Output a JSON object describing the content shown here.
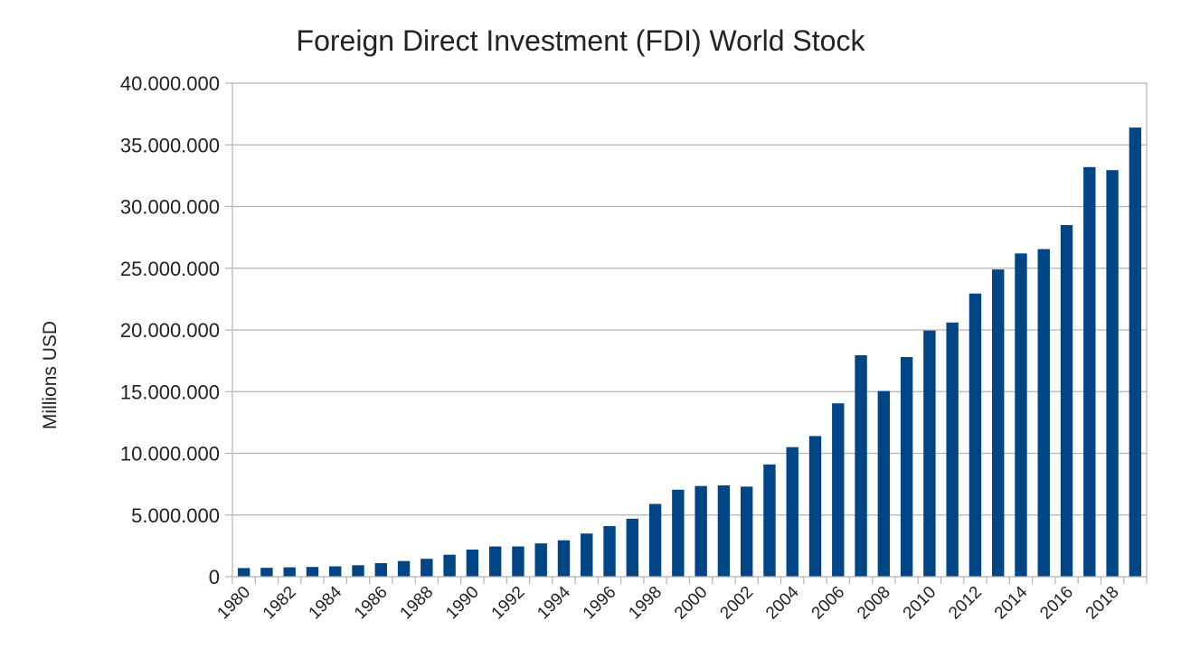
{
  "chart_data": {
    "type": "bar",
    "title": "Foreign Direct Investment (FDI) World Stock",
    "xlabel": "",
    "ylabel": "Millions USD",
    "ylim": [
      0,
      40000000
    ],
    "yticks": [
      0,
      5000000,
      10000000,
      15000000,
      20000000,
      25000000,
      30000000,
      35000000,
      40000000
    ],
    "ytick_labels": [
      "0",
      "5.000.000",
      "10.000.000",
      "15.000.000",
      "20.000.000",
      "25.000.000",
      "30.000.000",
      "35.000.000",
      "40.000.000"
    ],
    "categories": [
      "1980",
      "1981",
      "1982",
      "1983",
      "1984",
      "1985",
      "1986",
      "1987",
      "1988",
      "1989",
      "1990",
      "1991",
      "1992",
      "1993",
      "1994",
      "1995",
      "1996",
      "1997",
      "1998",
      "1999",
      "2000",
      "2001",
      "2002",
      "2003",
      "2004",
      "2005",
      "2006",
      "2007",
      "2008",
      "2009",
      "2010",
      "2011",
      "2012",
      "2013",
      "2014",
      "2015",
      "2016",
      "2017",
      "2018",
      "2019"
    ],
    "xtick_labels": [
      "1980",
      "1982",
      "1984",
      "1986",
      "1988",
      "1990",
      "1992",
      "1994",
      "1996",
      "1998",
      "2000",
      "2002",
      "2004",
      "2006",
      "2008",
      "2010",
      "2012",
      "2014",
      "2016",
      "2018"
    ],
    "values": [
      700000,
      720000,
      760000,
      790000,
      840000,
      930000,
      1100000,
      1270000,
      1450000,
      1780000,
      2200000,
      2450000,
      2450000,
      2700000,
      2950000,
      3500000,
      4100000,
      4700000,
      5900000,
      7050000,
      7350000,
      7400000,
      7300000,
      9100000,
      10500000,
      11400000,
      14050000,
      17950000,
      15050000,
      17800000,
      19950000,
      20600000,
      22950000,
      24900000,
      26200000,
      26550000,
      28500000,
      33200000,
      32950000,
      36400000
    ],
    "color": "#004586",
    "grid": true,
    "legend": "none"
  }
}
